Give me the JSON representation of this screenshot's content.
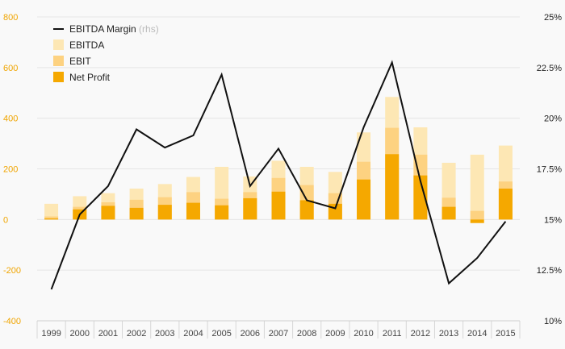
{
  "chart_data": {
    "type": "bar",
    "categories": [
      "1999",
      "2000",
      "2001",
      "2002",
      "2003",
      "2004",
      "2005",
      "2006",
      "2007",
      "2008",
      "2009",
      "2010",
      "2011",
      "2012",
      "2013",
      "2014",
      "2015"
    ],
    "series": [
      {
        "name": "EBITDA",
        "type": "bar",
        "axis": "left",
        "values": [
          62,
          92,
          104,
          122,
          140,
          168,
          208,
          170,
          232,
          208,
          188,
          344,
          484,
          364,
          224,
          256,
          292
        ]
      },
      {
        "name": "EBIT",
        "type": "bar",
        "axis": "left",
        "values": [
          12,
          50,
          68,
          78,
          88,
          108,
          82,
          108,
          164,
          136,
          104,
          228,
          362,
          256,
          86,
          34,
          150
        ]
      },
      {
        "name": "Net Profit",
        "type": "bar",
        "axis": "left",
        "values": [
          4,
          40,
          54,
          46,
          58,
          66,
          56,
          84,
          110,
          76,
          62,
          158,
          258,
          174,
          50,
          -14,
          122
        ]
      },
      {
        "name": "EBITDA Margin",
        "name_suffix": "(rhs)",
        "type": "line",
        "axis": "right",
        "values": [
          0.1155,
          0.1525,
          0.1665,
          0.1945,
          0.1855,
          0.1915,
          0.2215,
          0.1665,
          0.185,
          0.1595,
          0.1555,
          0.1955,
          0.2275,
          0.169,
          0.1185,
          0.131,
          0.149
        ]
      }
    ],
    "left_axis": {
      "ylim": [
        -400,
        800
      ],
      "ticks": [
        "800",
        "600",
        "400",
        "200",
        "0",
        "-200",
        "-400"
      ]
    },
    "right_axis": {
      "ylim": [
        0.1,
        0.25
      ],
      "ticks": [
        "25%",
        "22.5%",
        "20%",
        "17.5%",
        "15%",
        "12.5%",
        "10%"
      ]
    },
    "legend": {
      "placement": "top-left",
      "items": [
        {
          "label": "EBITDA Margin",
          "suffix": "(rhs)",
          "kind": "line",
          "color": "#111111"
        },
        {
          "label": "EBITDA",
          "kind": "box",
          "color": "#fde7b4"
        },
        {
          "label": "EBIT",
          "kind": "box",
          "color": "#fdd281"
        },
        {
          "label": "Net Profit",
          "kind": "box",
          "color": "#f5a800"
        }
      ]
    },
    "colors": {
      "ebitda": "#fde7b4",
      "ebit": "#fdd281",
      "net_profit": "#f5a800",
      "margin": "#111111",
      "left_axis": "#f0a500",
      "grid": "#e6e6e6"
    },
    "grid": true
  }
}
